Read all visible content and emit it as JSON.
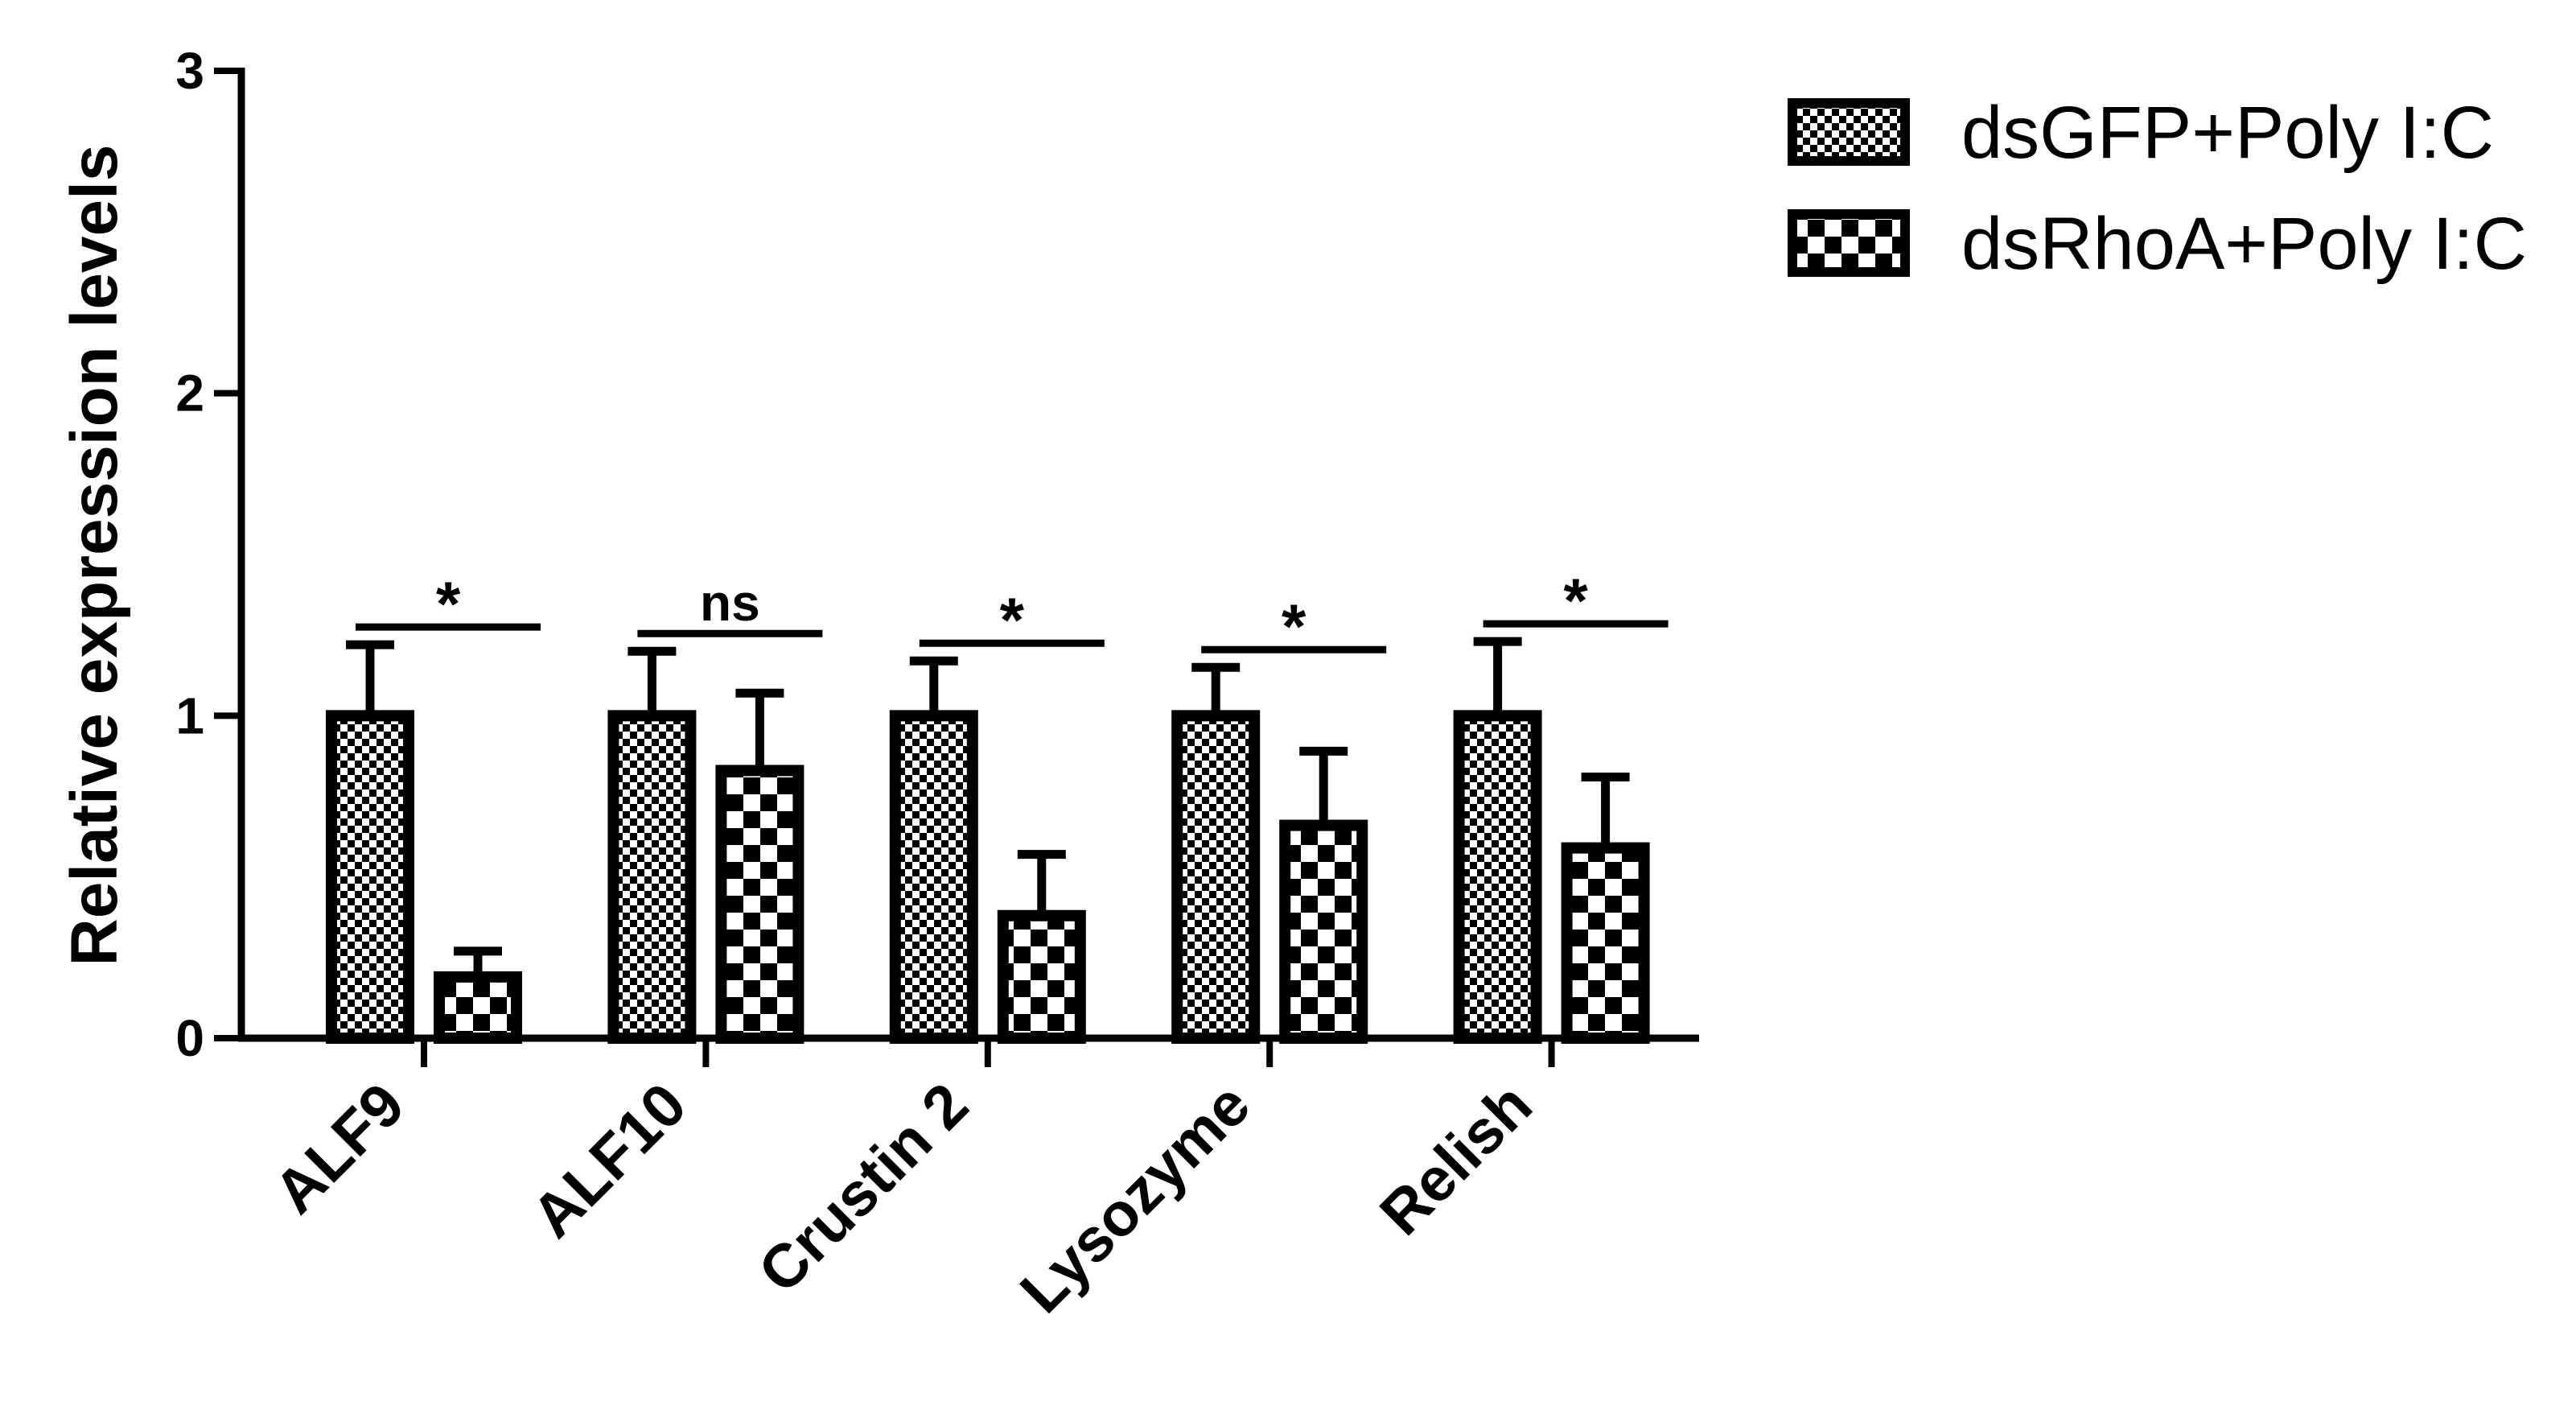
{
  "chart_data": {
    "type": "bar",
    "title": "",
    "xlabel": "",
    "ylabel": "Relative expression levels",
    "ylim": [
      0,
      3
    ],
    "yticks": [
      "0",
      "1",
      "2",
      "3"
    ],
    "categories": [
      "ALF9",
      "ALF10",
      "Crustin 2",
      "Lysozyme",
      "Relish"
    ],
    "series": [
      {
        "name": "dsGFP+Poly I:C",
        "pattern": "fine-checker",
        "values": [
          1.0,
          1.0,
          1.0,
          1.0,
          1.0
        ],
        "errors": [
          0.22,
          0.2,
          0.17,
          0.15,
          0.23
        ]
      },
      {
        "name": "dsRhoA+Poly I:C",
        "pattern": "coarse-checker",
        "values": [
          0.19,
          0.83,
          0.38,
          0.66,
          0.59
        ],
        "errors": [
          0.08,
          0.24,
          0.19,
          0.23,
          0.22
        ]
      }
    ],
    "significance": [
      "*",
      "ns",
      "*",
      "*",
      "*"
    ],
    "legend_position": "top-right",
    "grid": false,
    "colors": {
      "foreground": "#000000",
      "background": "#ffffff"
    }
  }
}
